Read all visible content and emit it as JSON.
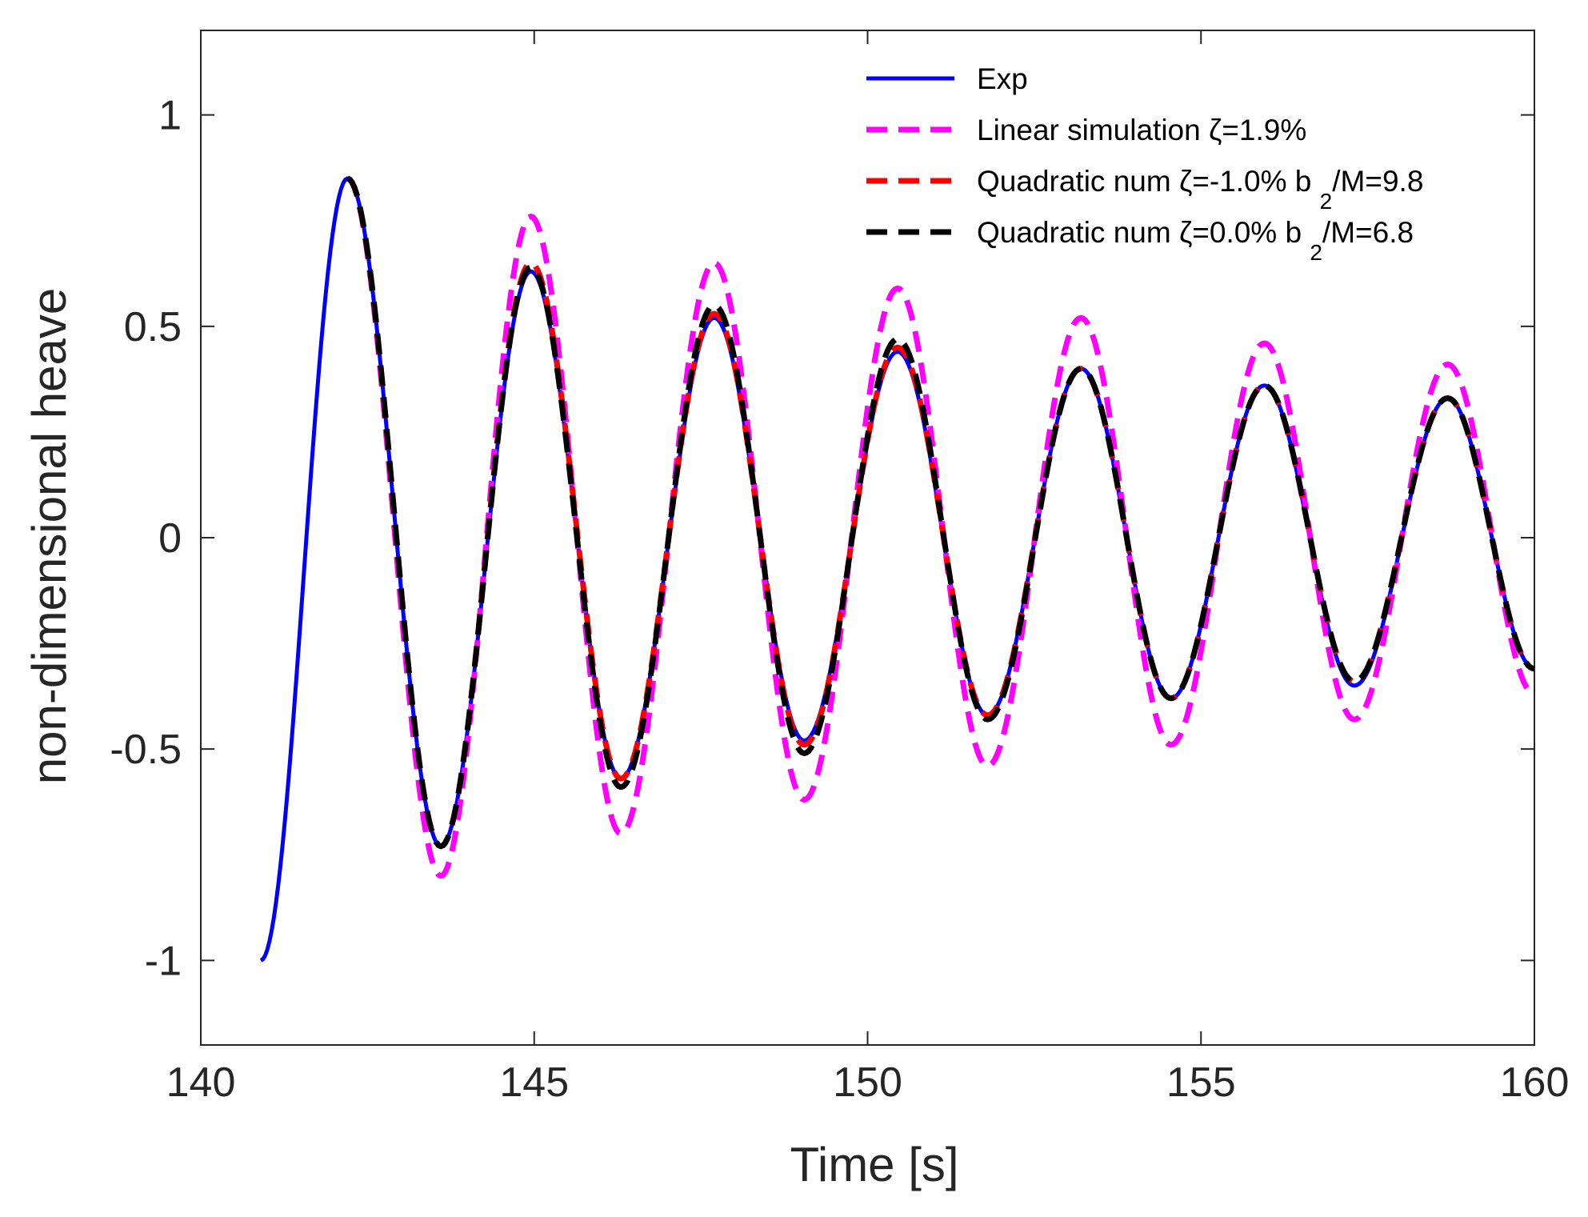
{
  "chart_data": {
    "type": "line",
    "title": "",
    "xlabel": "Time [s]",
    "ylabel": "non-dimensional heave",
    "xlim": [
      140,
      160
    ],
    "ylim": [
      -1.2,
      1.2
    ],
    "xticks": [
      140,
      145,
      150,
      155,
      160
    ],
    "yticks": [
      -1,
      -0.5,
      0,
      0.5,
      1
    ],
    "xtick_labels": [
      "140",
      "145",
      "150",
      "155",
      "160"
    ],
    "ytick_labels": [
      "-1",
      "-0.5",
      "0",
      "0.5",
      "1"
    ],
    "grid": false,
    "legend_position": "top-right",
    "series": [
      {
        "name": "Exp",
        "label_main": "Exp",
        "label_sub": "",
        "label_tail": "",
        "color": "#0000ff",
        "style": "solid",
        "points": [
          [
            140.9,
            -1.0
          ],
          [
            142.2,
            0.85
          ],
          [
            143.6,
            -0.73
          ],
          [
            144.95,
            0.63
          ],
          [
            146.3,
            -0.57
          ],
          [
            147.7,
            0.52
          ],
          [
            149.05,
            -0.48
          ],
          [
            150.45,
            0.44
          ],
          [
            151.8,
            -0.42
          ],
          [
            153.2,
            0.4
          ],
          [
            154.55,
            -0.38
          ],
          [
            155.95,
            0.36
          ],
          [
            157.3,
            -0.35
          ],
          [
            158.7,
            0.33
          ],
          [
            160.0,
            -0.31
          ]
        ]
      },
      {
        "name": "Linear simulation ζ=1.9%",
        "label_main": "Linear simulation ζ=1.9%",
        "label_sub": "",
        "label_tail": "",
        "color": "#ff00ff",
        "style": "dashed",
        "points": [
          [
            142.2,
            0.85
          ],
          [
            143.6,
            -0.8
          ],
          [
            144.95,
            0.76
          ],
          [
            146.3,
            -0.7
          ],
          [
            147.7,
            0.65
          ],
          [
            149.05,
            -0.62
          ],
          [
            150.45,
            0.59
          ],
          [
            151.8,
            -0.54
          ],
          [
            153.2,
            0.52
          ],
          [
            154.55,
            -0.49
          ],
          [
            155.95,
            0.46
          ],
          [
            157.3,
            -0.43
          ],
          [
            158.7,
            0.41
          ],
          [
            160.0,
            -0.37
          ]
        ]
      },
      {
        "name": "Quadratic num ζ=-1.0% b 2/M=9.8",
        "label_main": "Quadratic num ζ=-1.0% b ",
        "label_sub": "2",
        "label_tail": "/M=9.8",
        "color": "#ff0000",
        "style": "dashed",
        "points": [
          [
            142.2,
            0.85
          ],
          [
            143.6,
            -0.73
          ],
          [
            144.95,
            0.65
          ],
          [
            146.3,
            -0.57
          ],
          [
            147.7,
            0.53
          ],
          [
            149.05,
            -0.49
          ],
          [
            150.45,
            0.45
          ],
          [
            151.8,
            -0.42
          ],
          [
            153.2,
            0.4
          ],
          [
            154.55,
            -0.38
          ],
          [
            155.95,
            0.36
          ],
          [
            157.3,
            -0.34
          ],
          [
            158.7,
            0.33
          ],
          [
            160.0,
            -0.31
          ]
        ]
      },
      {
        "name": "Quadratic num ζ=0.0% b 2/M=6.8",
        "label_main": "Quadratic num ζ=0.0% b ",
        "label_sub": "2",
        "label_tail": "/M=6.8",
        "color": "#000000",
        "style": "dashed",
        "points": [
          [
            142.2,
            0.85
          ],
          [
            143.6,
            -0.73
          ],
          [
            144.95,
            0.64
          ],
          [
            146.3,
            -0.59
          ],
          [
            147.7,
            0.55
          ],
          [
            149.05,
            -0.51
          ],
          [
            150.45,
            0.47
          ],
          [
            151.8,
            -0.43
          ],
          [
            153.2,
            0.4
          ],
          [
            154.55,
            -0.38
          ],
          [
            155.95,
            0.36
          ],
          [
            157.3,
            -0.34
          ],
          [
            158.7,
            0.33
          ],
          [
            160.0,
            -0.31
          ]
        ]
      }
    ]
  }
}
